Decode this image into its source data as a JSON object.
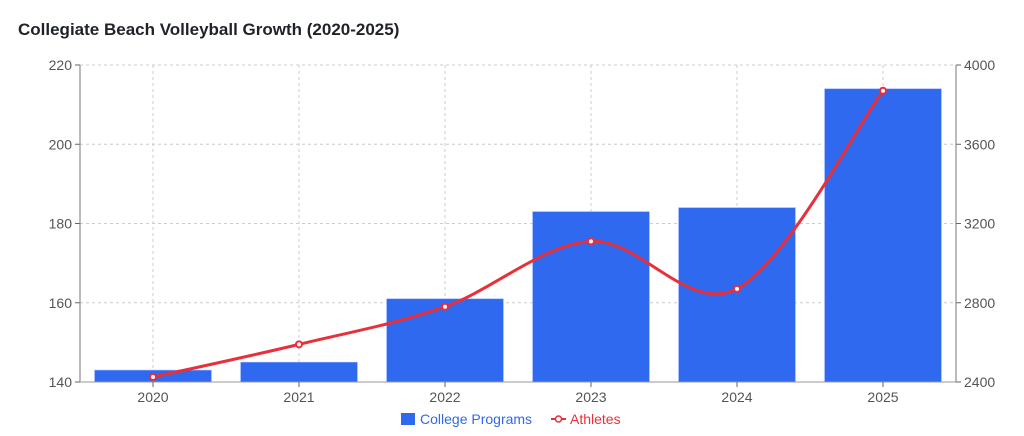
{
  "chart_data": {
    "type": "bar+line",
    "title": "Collegiate Beach Volleyball Growth (2020-2025)",
    "categories": [
      "2020",
      "2021",
      "2022",
      "2023",
      "2024",
      "2025"
    ],
    "series": [
      {
        "name": "College Programs",
        "type": "bar",
        "axis": "left",
        "color": "#2f69ef",
        "values": [
          143,
          145,
          161,
          183,
          184,
          214
        ]
      },
      {
        "name": "Athletes",
        "type": "line",
        "axis": "right",
        "color": "#e8303a",
        "smooth": true,
        "values": [
          2425,
          2590,
          2780,
          3110,
          2870,
          3870
        ]
      }
    ],
    "y_left": {
      "range": [
        140,
        220
      ],
      "ticks": [
        "140",
        "160",
        "180",
        "200",
        "220"
      ]
    },
    "y_right": {
      "range": [
        2400,
        4000
      ],
      "ticks": [
        "2400",
        "2800",
        "3200",
        "3600",
        "4000"
      ]
    },
    "grid": true,
    "legend": "bottom"
  }
}
